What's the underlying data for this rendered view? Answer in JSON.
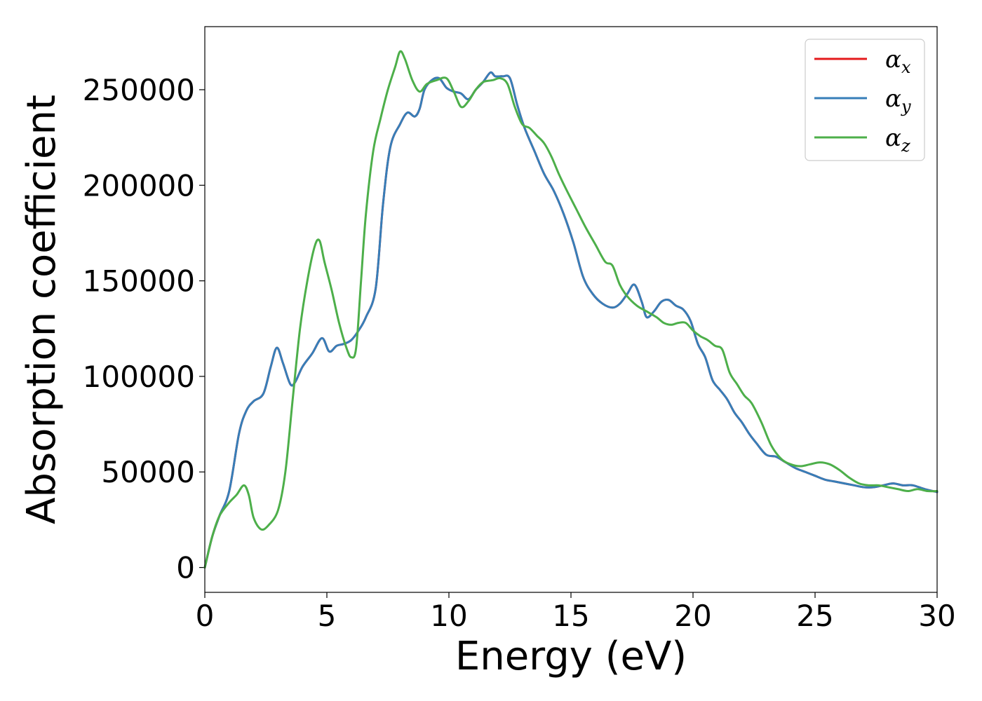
{
  "chart_data": {
    "type": "line",
    "xlabel": "Energy (eV)",
    "ylabel": "Absorption coefficient",
    "xlim": [
      0,
      30
    ],
    "ylim": [
      -13000,
      283000
    ],
    "xticks": [
      0,
      5,
      10,
      15,
      20,
      25,
      30
    ],
    "yticks": [
      0,
      50000,
      100000,
      150000,
      200000,
      250000
    ],
    "grid": false,
    "legend_position": "top-right",
    "series": [
      {
        "name": "α",
        "subscript": "x",
        "color": "#e41a1c",
        "x": [
          0,
          0.3,
          0.6,
          1.0,
          1.4,
          1.7,
          2.0,
          2.4,
          2.7,
          2.95,
          3.2,
          3.5,
          3.7,
          4.0,
          4.4,
          4.8,
          5.1,
          5.4,
          5.7,
          6.0,
          6.3,
          6.6,
          7.0,
          7.3,
          7.6,
          8.0,
          8.3,
          8.6,
          8.8,
          9.0,
          9.3,
          9.6,
          9.9,
          10.2,
          10.5,
          10.8,
          11.1,
          11.4,
          11.7,
          11.9,
          12.2,
          12.5,
          12.8,
          13.1,
          13.5,
          13.9,
          14.3,
          14.7,
          15.1,
          15.5,
          15.9,
          16.3,
          16.7,
          17.0,
          17.3,
          17.6,
          17.9,
          18.1,
          18.4,
          18.7,
          19.0,
          19.3,
          19.6,
          19.9,
          20.2,
          20.5,
          20.8,
          21.1,
          21.4,
          21.7,
          22.0,
          22.3,
          22.6,
          23.0,
          23.4,
          23.8,
          24.2,
          24.6,
          25.0,
          25.4,
          25.8,
          26.2,
          26.6,
          27.0,
          27.4,
          27.8,
          28.2,
          28.6,
          29.0,
          29.5,
          30.0
        ],
        "y": [
          0,
          16000,
          27000,
          40000,
          70000,
          82000,
          87000,
          91000,
          105000,
          115000,
          107000,
          96000,
          97000,
          105000,
          112000,
          120000,
          113000,
          116000,
          117000,
          119000,
          124000,
          131000,
          146000,
          190000,
          220000,
          232000,
          238000,
          236000,
          240000,
          250000,
          255000,
          256000,
          251000,
          249000,
          248000,
          245000,
          250000,
          254000,
          259000,
          257000,
          257000,
          256000,
          242000,
          230000,
          218000,
          206000,
          197000,
          185000,
          170000,
          152000,
          143000,
          138000,
          136000,
          138000,
          143000,
          148000,
          139000,
          131000,
          134000,
          139000,
          140000,
          137000,
          135000,
          129000,
          117000,
          110000,
          98000,
          93000,
          88000,
          81000,
          76000,
          70000,
          65000,
          59000,
          58000,
          55000,
          52000,
          50000,
          48000,
          46000,
          45000,
          44000,
          43000,
          42000,
          42000,
          43000,
          44000,
          43000,
          43000,
          41000,
          39500
        ]
      },
      {
        "name": "α",
        "subscript": "y",
        "color": "#377eb8",
        "x": [
          0,
          0.3,
          0.6,
          1.0,
          1.4,
          1.7,
          2.0,
          2.4,
          2.7,
          2.95,
          3.2,
          3.5,
          3.7,
          4.0,
          4.4,
          4.8,
          5.1,
          5.4,
          5.7,
          6.0,
          6.3,
          6.6,
          7.0,
          7.3,
          7.6,
          8.0,
          8.3,
          8.6,
          8.8,
          9.0,
          9.3,
          9.6,
          9.9,
          10.2,
          10.5,
          10.8,
          11.1,
          11.4,
          11.7,
          11.9,
          12.2,
          12.5,
          12.8,
          13.1,
          13.5,
          13.9,
          14.3,
          14.7,
          15.1,
          15.5,
          15.9,
          16.3,
          16.7,
          17.0,
          17.3,
          17.6,
          17.9,
          18.1,
          18.4,
          18.7,
          19.0,
          19.3,
          19.6,
          19.9,
          20.2,
          20.5,
          20.8,
          21.1,
          21.4,
          21.7,
          22.0,
          22.3,
          22.6,
          23.0,
          23.4,
          23.8,
          24.2,
          24.6,
          25.0,
          25.4,
          25.8,
          26.2,
          26.6,
          27.0,
          27.4,
          27.8,
          28.2,
          28.6,
          29.0,
          29.5,
          30.0
        ],
        "y": [
          0,
          16000,
          27000,
          40000,
          70000,
          82000,
          87000,
          91000,
          105000,
          115000,
          107000,
          96000,
          97000,
          105000,
          112000,
          120000,
          113000,
          116000,
          117000,
          119000,
          124000,
          131000,
          146000,
          190000,
          220000,
          232000,
          238000,
          236000,
          240000,
          250000,
          255000,
          256000,
          251000,
          249000,
          248000,
          245000,
          250000,
          254000,
          259000,
          257000,
          257000,
          256000,
          242000,
          230000,
          218000,
          206000,
          197000,
          185000,
          170000,
          152000,
          143000,
          138000,
          136000,
          138000,
          143000,
          148000,
          139000,
          131000,
          134000,
          139000,
          140000,
          137000,
          135000,
          129000,
          117000,
          110000,
          98000,
          93000,
          88000,
          81000,
          76000,
          70000,
          65000,
          59000,
          58000,
          55000,
          52000,
          50000,
          48000,
          46000,
          45000,
          44000,
          43000,
          42000,
          42000,
          43000,
          44000,
          43000,
          43000,
          41000,
          39500
        ]
      },
      {
        "name": "α",
        "subscript": "z",
        "color": "#4daf4a",
        "x": [
          0,
          0.3,
          0.6,
          1.0,
          1.3,
          1.6,
          1.8,
          2.0,
          2.3,
          2.6,
          3.0,
          3.3,
          3.6,
          3.9,
          4.2,
          4.5,
          4.7,
          4.9,
          5.2,
          5.5,
          5.8,
          6.0,
          6.2,
          6.4,
          6.6,
          6.9,
          7.2,
          7.5,
          7.8,
          8.0,
          8.2,
          8.5,
          8.8,
          9.1,
          9.5,
          9.9,
          10.2,
          10.5,
          10.8,
          11.1,
          11.4,
          11.8,
          12.1,
          12.4,
          12.7,
          13.0,
          13.3,
          13.6,
          13.9,
          14.2,
          14.5,
          14.8,
          15.2,
          15.6,
          16.0,
          16.4,
          16.7,
          17.0,
          17.3,
          17.7,
          18.1,
          18.5,
          18.8,
          19.1,
          19.4,
          19.7,
          20.0,
          20.3,
          20.6,
          20.9,
          21.2,
          21.5,
          21.8,
          22.1,
          22.4,
          22.8,
          23.2,
          23.6,
          24.0,
          24.4,
          24.8,
          25.2,
          25.6,
          26.0,
          26.4,
          26.8,
          27.2,
          27.6,
          28.0,
          28.4,
          28.8,
          29.2,
          29.6,
          30.0
        ],
        "y": [
          0,
          16000,
          27000,
          34000,
          38000,
          43000,
          38000,
          26000,
          20000,
          22000,
          30000,
          50000,
          88000,
          125000,
          150000,
          168000,
          171000,
          160000,
          145000,
          128000,
          115000,
          110000,
          115000,
          150000,
          185000,
          218000,
          235000,
          250000,
          262000,
          270000,
          266000,
          255000,
          249000,
          253000,
          255000,
          256000,
          249000,
          241000,
          244000,
          250000,
          254000,
          255000,
          256000,
          253000,
          241000,
          232000,
          230000,
          226000,
          222000,
          215000,
          206000,
          198000,
          188000,
          178000,
          169000,
          160000,
          158000,
          148000,
          142000,
          137000,
          134000,
          131000,
          128000,
          127000,
          128000,
          128000,
          124000,
          121000,
          119000,
          116000,
          114000,
          102000,
          96000,
          90000,
          86000,
          76000,
          64000,
          57000,
          54000,
          53000,
          54000,
          55000,
          54000,
          51000,
          47000,
          44000,
          43000,
          43000,
          42000,
          41000,
          40000,
          41000,
          40000,
          40000
        ]
      }
    ]
  }
}
